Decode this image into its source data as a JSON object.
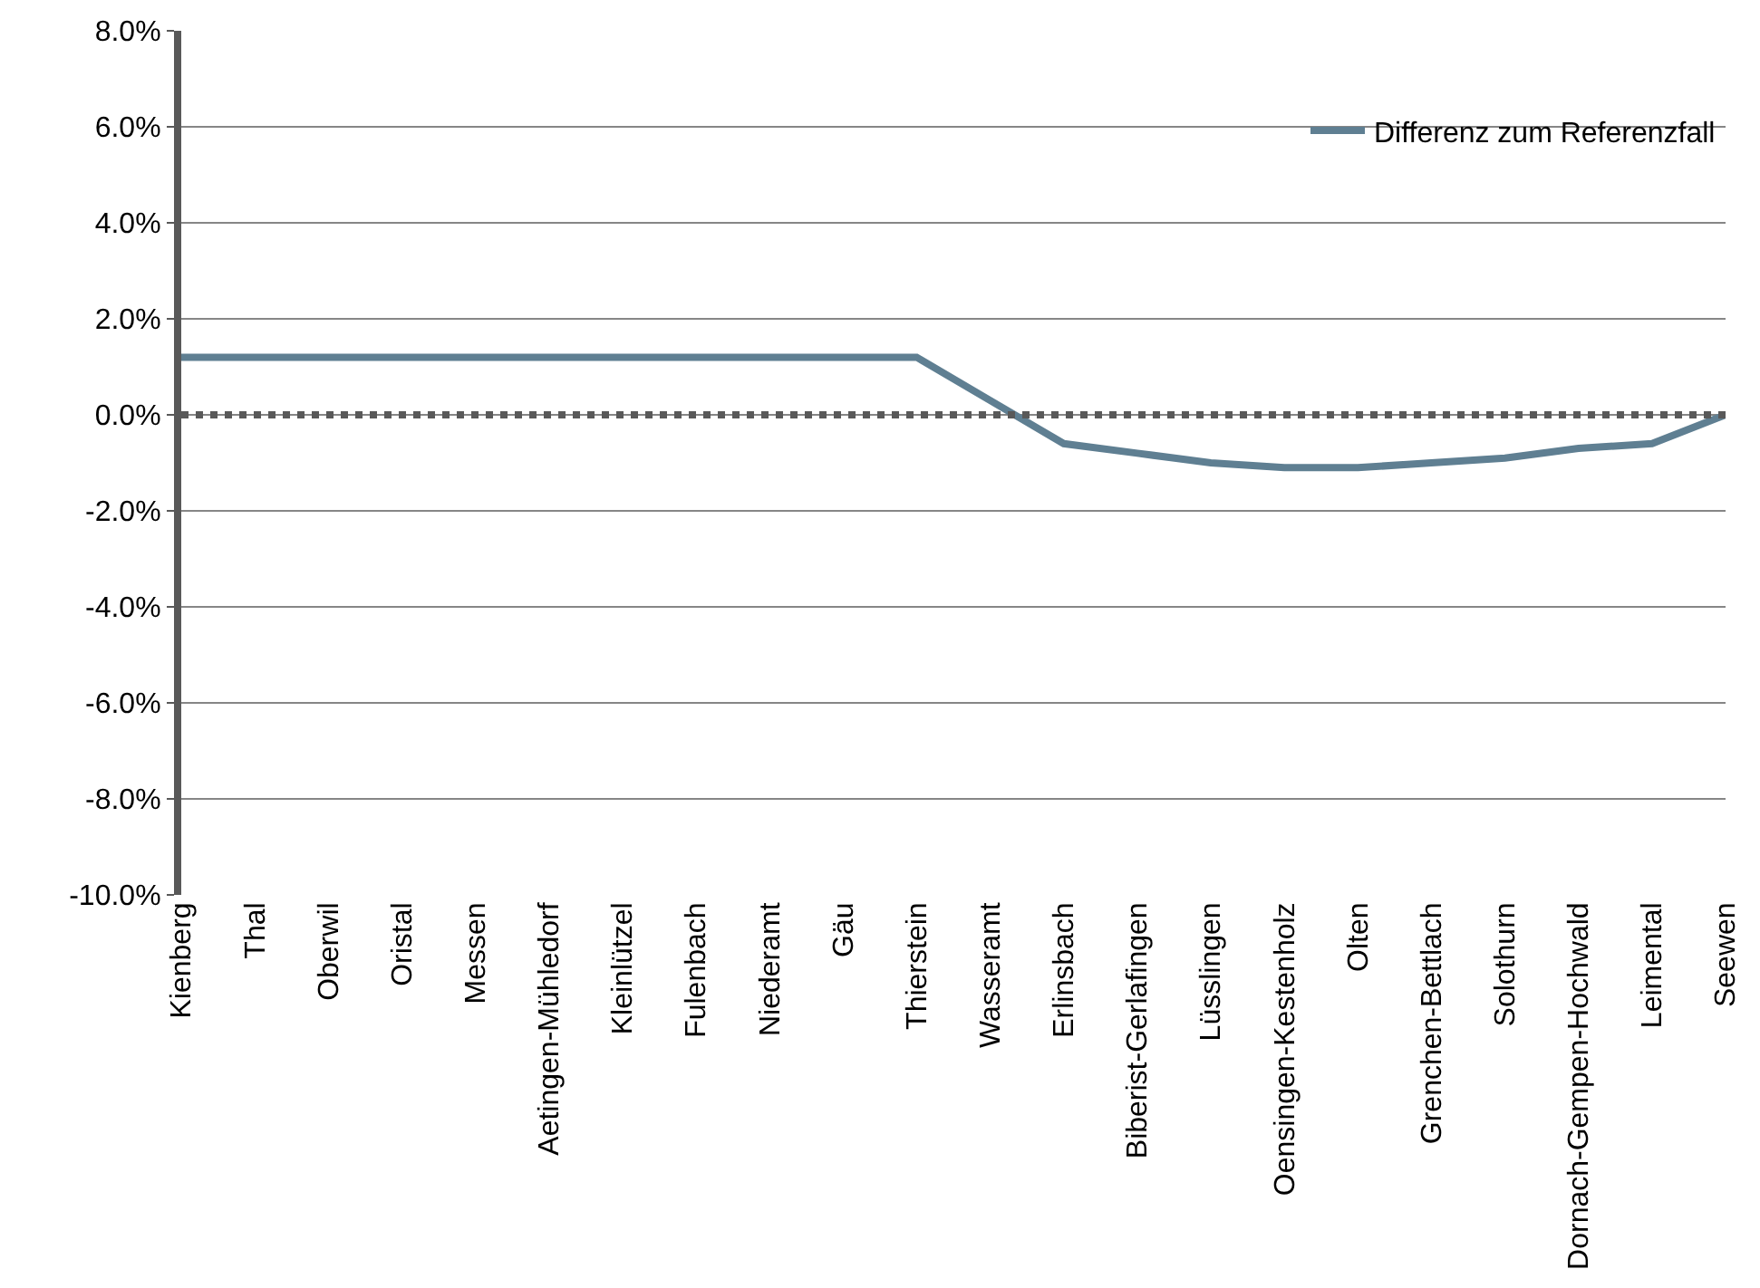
{
  "chart_data": {
    "type": "line",
    "categories": [
      "Kienberg",
      "Thal",
      "Oberwil",
      "Oristal",
      "Messen",
      "Aetingen-Mühledorf",
      "Kleinlützel",
      "Fulenbach",
      "Niederamt",
      "Gäu",
      "Thierstein",
      "Wasseramt",
      "Erlinsbach",
      "Biberist-Gerlafingen",
      "Lüsslingen",
      "Oensingen-Kestenholz",
      "Olten",
      "Grenchen-Bettlach",
      "Solothurn",
      "Dornach-Gempen-Hochwald",
      "Leimental",
      "Seewen"
    ],
    "series": [
      {
        "name": "Differenz zum Referenzfall",
        "color": "#5f7f92",
        "values": [
          1.2,
          1.2,
          1.2,
          1.2,
          1.2,
          1.2,
          1.2,
          1.2,
          1.2,
          1.2,
          1.2,
          0.3,
          -0.6,
          -0.8,
          -1.0,
          -1.1,
          -1.1,
          -1.0,
          -0.9,
          -0.7,
          -0.6,
          0.0
        ]
      }
    ],
    "ylim": [
      -10,
      8
    ],
    "yticks": [
      {
        "value": -10,
        "label": "-10.0%"
      },
      {
        "value": -8,
        "label": "-8.0%"
      },
      {
        "value": -6,
        "label": "-6.0%"
      },
      {
        "value": -4,
        "label": "-4.0%"
      },
      {
        "value": -2,
        "label": "-2.0%"
      },
      {
        "value": 0,
        "label": "0.0%"
      },
      {
        "value": 2,
        "label": "2.0%"
      },
      {
        "value": 4,
        "label": "4.0%"
      },
      {
        "value": 6,
        "label": "6.0%"
      },
      {
        "value": 8,
        "label": "8.0%"
      }
    ],
    "ref_lines": [
      {
        "axis": "y",
        "value": 0,
        "color": "#595959",
        "line_style": "dotted"
      }
    ],
    "grid": "y",
    "legend": "top right",
    "marker": "none",
    "line_style": "solid"
  }
}
